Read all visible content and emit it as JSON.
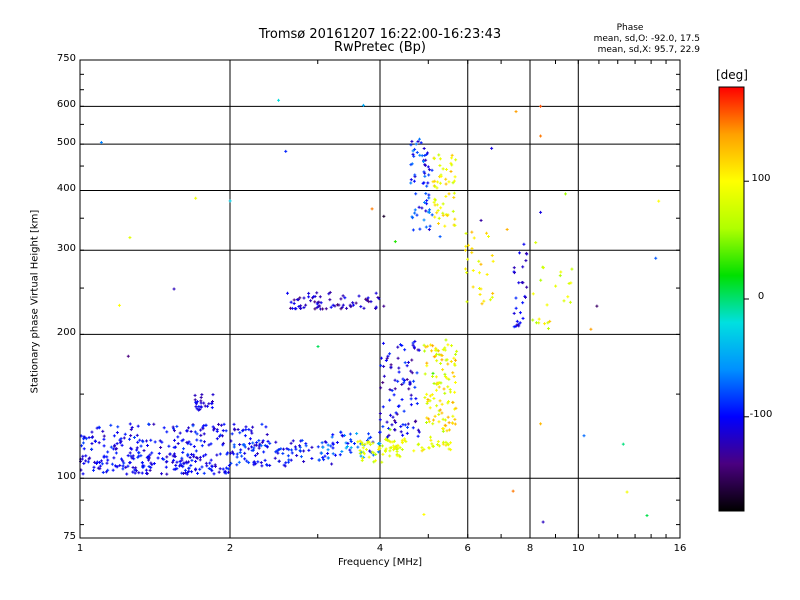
{
  "header": {
    "title_line1": "Tromsø 20161207 16:22:00-16:23:43",
    "title_line2": "RwPretec (Bp)"
  },
  "phase_box": {
    "title": "Phase",
    "line_o": "mean, sd,O: -92.0, 17.5",
    "line_x": "mean, sd,X: 95.7, 22.9"
  },
  "colorbar": {
    "unit": "[deg]",
    "ticks": [
      {
        "value": 100,
        "label": "100"
      },
      {
        "value": 0,
        "label": "0"
      },
      {
        "value": -100,
        "label": "-100"
      }
    ],
    "range": [
      -180,
      180
    ],
    "colors": [
      "#000000",
      "#4a0080",
      "#0000ff",
      "#0090ff",
      "#00e0e0",
      "#00e000",
      "#b0ff00",
      "#ffff00",
      "#ffa000",
      "#ff0000"
    ]
  },
  "chart_data": {
    "type": "scatter",
    "title": "",
    "xlabel": "Frequency [MHz]",
    "ylabel": "Stationary phase Virtual Height [km]",
    "x_scale": "log",
    "y_scale": "log",
    "xlim": [
      1,
      16
    ],
    "ylim": [
      75,
      750
    ],
    "grid": true,
    "x_ticks": [
      {
        "value": 1,
        "label": "1"
      },
      {
        "value": 2,
        "label": "2"
      },
      {
        "value": 4,
        "label": "4"
      },
      {
        "value": 6,
        "label": "6"
      },
      {
        "value": 8,
        "label": "8"
      },
      {
        "value": 10,
        "label": "10"
      },
      {
        "value": 16,
        "label": "16"
      }
    ],
    "y_ticks": [
      {
        "value": 75,
        "label": "75"
      },
      {
        "value": 100,
        "label": "100"
      },
      {
        "value": 200,
        "label": "200"
      },
      {
        "value": 300,
        "label": "300"
      },
      {
        "value": 400,
        "label": "400"
      },
      {
        "value": 500,
        "label": "500"
      },
      {
        "value": 600,
        "label": "600"
      },
      {
        "value": 750,
        "label": "750"
      }
    ],
    "point_clusters": [
      {
        "x_range": [
          1.0,
          2.0
        ],
        "y_range": [
          102,
          112
        ],
        "phase_range": [
          -125,
          -85
        ],
        "count": 170
      },
      {
        "x_range": [
          1.0,
          2.4
        ],
        "y_range": [
          112,
          130
        ],
        "phase_range": [
          -125,
          -80
        ],
        "count": 190
      },
      {
        "x_range": [
          1.7,
          1.85
        ],
        "y_range": [
          138,
          150
        ],
        "phase_range": [
          -130,
          -95
        ],
        "count": 25
      },
      {
        "x_range": [
          2.0,
          3.2
        ],
        "y_range": [
          106,
          120
        ],
        "phase_range": [
          -120,
          -70
        ],
        "count": 90
      },
      {
        "x_range": [
          3.0,
          4.0
        ],
        "y_range": [
          110,
          125
        ],
        "phase_range": [
          -115,
          -40
        ],
        "count": 55
      },
      {
        "x_range": [
          3.6,
          4.4
        ],
        "y_range": [
          108,
          120
        ],
        "phase_range": [
          60,
          110
        ],
        "count": 45
      },
      {
        "x_range": [
          4.0,
          5.6
        ],
        "y_range": [
          114,
          122
        ],
        "phase_range": [
          70,
          120
        ],
        "count": 50
      },
      {
        "x_range": [
          4.0,
          4.8
        ],
        "y_range": [
          120,
          195
        ],
        "phase_range": [
          -140,
          -80
        ],
        "count": 95
      },
      {
        "x_range": [
          4.9,
          5.7
        ],
        "y_range": [
          125,
          195
        ],
        "phase_range": [
          60,
          140
        ],
        "count": 110
      },
      {
        "x_range": [
          2.6,
          4.1
        ],
        "y_range": [
          226,
          245
        ],
        "phase_range": [
          -145,
          -100
        ],
        "count": 75
      },
      {
        "x_range": [
          4.6,
          5.1
        ],
        "y_range": [
          330,
          520
        ],
        "phase_range": [
          -120,
          -60
        ],
        "count": 65
      },
      {
        "x_range": [
          5.1,
          5.7
        ],
        "y_range": [
          330,
          490
        ],
        "phase_range": [
          70,
          130
        ],
        "count": 55
      },
      {
        "x_range": [
          5.9,
          6.8
        ],
        "y_range": [
          230,
          330
        ],
        "phase_range": [
          80,
          130
        ],
        "count": 30
      },
      {
        "x_range": [
          7.4,
          7.9
        ],
        "y_range": [
          200,
          310
        ],
        "phase_range": [
          -140,
          -90
        ],
        "count": 28
      },
      {
        "x_range": [
          8.1,
          9.8
        ],
        "y_range": [
          200,
          280
        ],
        "phase_range": [
          60,
          130
        ],
        "count": 22
      },
      {
        "x_range": [
          1.0,
          16.0
        ],
        "y_range": [
          80,
          620
        ],
        "phase_range": [
          -170,
          150
        ],
        "count": 25
      }
    ],
    "reference_points": [
      {
        "x": 7.5,
        "y": 585,
        "phase": 140
      },
      {
        "x": 8.4,
        "y": 600,
        "phase": 160
      },
      {
        "x": 8.4,
        "y": 520,
        "phase": 150
      },
      {
        "x": 6.7,
        "y": 490,
        "phase": -110
      },
      {
        "x": 8.4,
        "y": 360,
        "phase": -110
      },
      {
        "x": 14.5,
        "y": 380,
        "phase": 100
      },
      {
        "x": 1.2,
        "y": 230,
        "phase": 100
      },
      {
        "x": 1.25,
        "y": 180,
        "phase": -140
      },
      {
        "x": 7.4,
        "y": 94,
        "phase": 150
      },
      {
        "x": 8.5,
        "y": 81,
        "phase": -120
      },
      {
        "x": 8.4,
        "y": 130,
        "phase": 130
      },
      {
        "x": 4.9,
        "y": 84,
        "phase": 100
      },
      {
        "x": 10.6,
        "y": 205,
        "phase": 140
      }
    ]
  }
}
